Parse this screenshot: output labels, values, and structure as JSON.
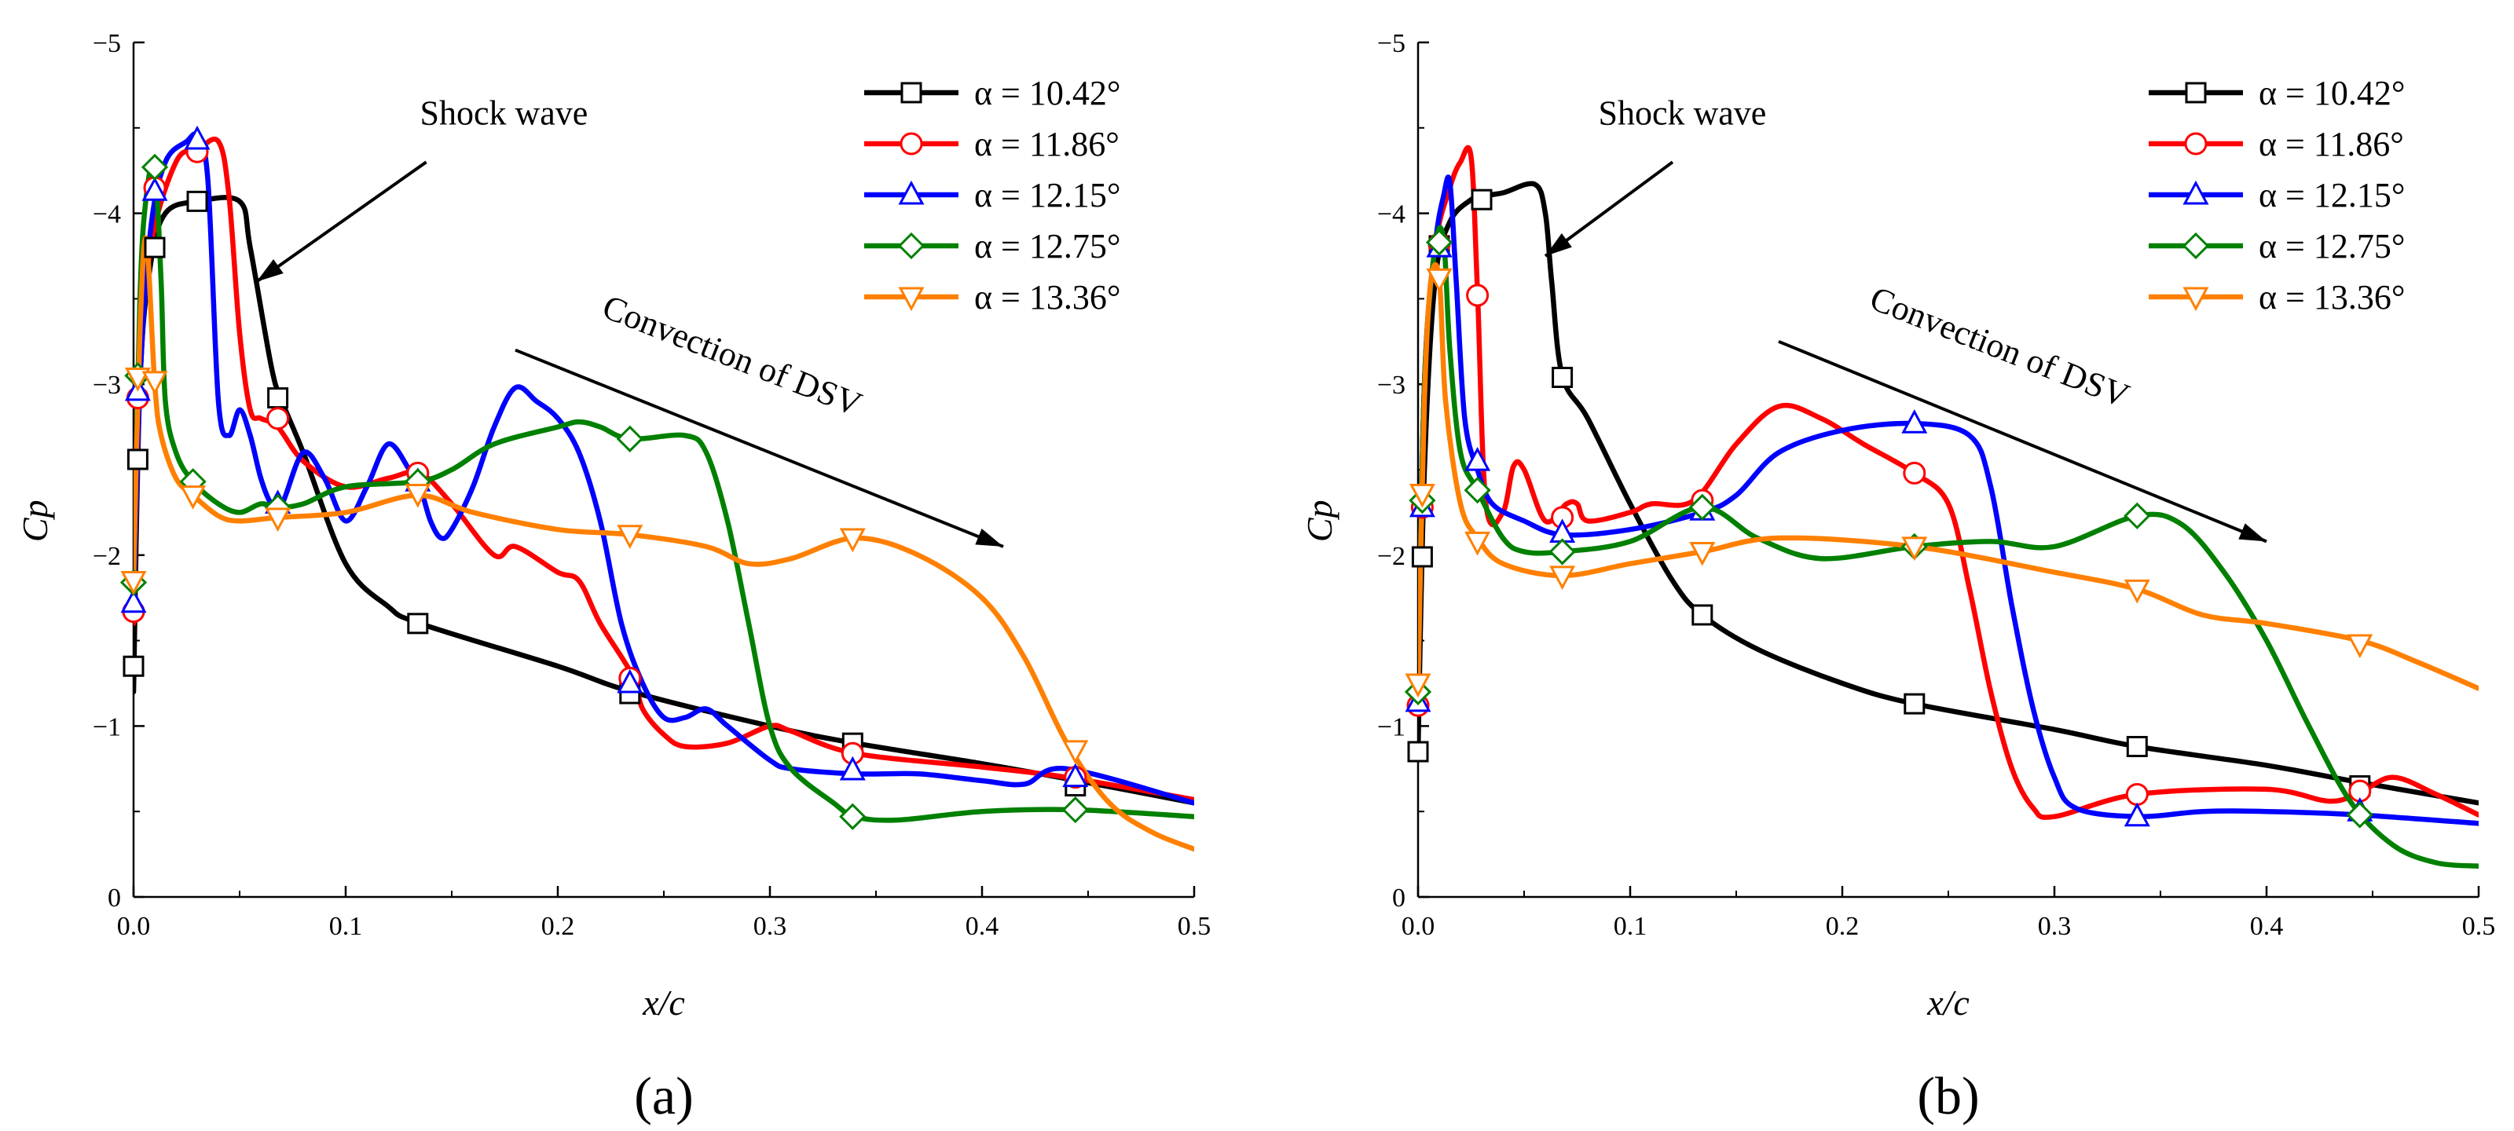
{
  "chart_data": [
    {
      "type": "line",
      "panel_label": "(a)",
      "xlabel": "x/c",
      "ylabel": "Cp",
      "xlim": [
        0,
        0.5
      ],
      "ylim": [
        0,
        -5
      ],
      "y_inverted": true,
      "grid": false,
      "legend_position": "top-right",
      "xticks": [
        "0.0",
        "0.1",
        "0.2",
        "0.3",
        "0.4",
        "0.5"
      ],
      "yticks": [
        "0",
        "−1",
        "−2",
        "−3",
        "−4",
        "−5"
      ],
      "annotations": [
        {
          "text": "Shock wave",
          "text_x": 0.135,
          "text_y": -4.52,
          "rotate": 0,
          "arrow_from": [
            0.138,
            -4.3
          ],
          "arrow_to": [
            0.058,
            -3.6
          ]
        },
        {
          "text": "Convection of DSV",
          "text_x": 0.22,
          "text_y": -3.4,
          "rotate": 21.5,
          "arrow_from": [
            0.18,
            -3.2
          ],
          "arrow_to": [
            0.41,
            -2.05
          ]
        }
      ],
      "series": [
        {
          "name": "α = 10.42°",
          "color": "#000000",
          "marker": "square",
          "x": [
            0,
            0.003,
            0.008,
            0.015,
            0.03,
            0.05,
            0.055,
            0.065,
            0.07,
            0.08,
            0.1,
            0.12,
            0.135,
            0.2,
            0.235,
            0.3,
            0.34,
            0.4,
            0.445,
            0.5
          ],
          "y": [
            -1.2,
            -3.0,
            -3.7,
            -4.0,
            -4.07,
            -4.07,
            -3.8,
            -3.1,
            -2.9,
            -2.6,
            -1.95,
            -1.7,
            -1.6,
            -1.35,
            -1.2,
            -1.0,
            -0.9,
            -0.78,
            -0.68,
            -0.55
          ],
          "marker_x": [
            0.0,
            0.002,
            0.01,
            0.03,
            0.068,
            0.134,
            0.234,
            0.339,
            0.444
          ],
          "marker_y": [
            -1.35,
            -2.56,
            -3.8,
            -4.07,
            -2.92,
            -1.6,
            -1.19,
            -0.9,
            -0.65
          ]
        },
        {
          "name": "α = 11.86°",
          "color": "#ff0000",
          "marker": "circle",
          "x": [
            0,
            0.003,
            0.008,
            0.02,
            0.03,
            0.04,
            0.045,
            0.05,
            0.055,
            0.06,
            0.068,
            0.08,
            0.1,
            0.12,
            0.135,
            0.15,
            0.17,
            0.18,
            0.2,
            0.21,
            0.22,
            0.235,
            0.24,
            0.25,
            0.26,
            0.28,
            0.3,
            0.31,
            0.34,
            0.4,
            0.44,
            0.5
          ],
          "y": [
            -1.6,
            -3.0,
            -3.8,
            -4.3,
            -4.37,
            -4.42,
            -4.1,
            -3.3,
            -2.85,
            -2.8,
            -2.75,
            -2.55,
            -2.4,
            -2.45,
            -2.48,
            -2.3,
            -2.0,
            -2.05,
            -1.9,
            -1.85,
            -1.6,
            -1.3,
            -1.1,
            -0.95,
            -0.88,
            -0.9,
            -1.0,
            -0.97,
            -0.84,
            -0.76,
            -0.7,
            -0.57
          ],
          "marker_x": [
            0.0,
            0.002,
            0.01,
            0.03,
            0.068,
            0.134,
            0.234,
            0.339,
            0.444
          ],
          "marker_y": [
            -1.67,
            -2.92,
            -4.15,
            -4.36,
            -2.8,
            -2.48,
            -1.28,
            -0.84,
            -0.7
          ]
        },
        {
          "name": "α = 12.15°",
          "color": "#0000ff",
          "marker": "triangle-up",
          "x": [
            0,
            0.003,
            0.008,
            0.015,
            0.025,
            0.03,
            0.035,
            0.04,
            0.045,
            0.05,
            0.055,
            0.06,
            0.065,
            0.07,
            0.08,
            0.09,
            0.1,
            0.11,
            0.12,
            0.13,
            0.135,
            0.14,
            0.145,
            0.15,
            0.16,
            0.17,
            0.18,
            0.19,
            0.2,
            0.21,
            0.22,
            0.23,
            0.24,
            0.25,
            0.26,
            0.27,
            0.28,
            0.3,
            0.31,
            0.34,
            0.37,
            0.4,
            0.42,
            0.44,
            0.5
          ],
          "y": [
            -1.7,
            -3.0,
            -3.9,
            -4.3,
            -4.42,
            -4.45,
            -4.2,
            -2.9,
            -2.7,
            -2.85,
            -2.7,
            -2.45,
            -2.3,
            -2.3,
            -2.6,
            -2.45,
            -2.2,
            -2.4,
            -2.65,
            -2.5,
            -2.4,
            -2.2,
            -2.1,
            -2.15,
            -2.4,
            -2.75,
            -2.98,
            -2.9,
            -2.8,
            -2.6,
            -2.2,
            -1.6,
            -1.25,
            -1.05,
            -1.05,
            -1.1,
            -1.0,
            -0.8,
            -0.75,
            -0.72,
            -0.72,
            -0.68,
            -0.66,
            -0.75,
            -0.55
          ],
          "marker_x": [
            0.0,
            0.002,
            0.01,
            0.03,
            0.068,
            0.134,
            0.234,
            0.339,
            0.444
          ],
          "marker_y": [
            -1.72,
            -2.96,
            -4.13,
            -4.43,
            -2.3,
            -2.43,
            -1.25,
            -0.74,
            -0.7
          ]
        },
        {
          "name": "α = 12.75°",
          "color": "#008000",
          "marker": "diamond",
          "x": [
            0,
            0.003,
            0.006,
            0.01,
            0.013,
            0.015,
            0.02,
            0.028,
            0.04,
            0.05,
            0.06,
            0.068,
            0.08,
            0.1,
            0.134,
            0.15,
            0.17,
            0.2,
            0.21,
            0.22,
            0.234,
            0.26,
            0.27,
            0.28,
            0.29,
            0.3,
            0.31,
            0.33,
            0.34,
            0.36,
            0.4,
            0.444,
            0.5
          ],
          "y": [
            -1.8,
            -3.5,
            -4.1,
            -4.27,
            -3.6,
            -2.9,
            -2.6,
            -2.43,
            -2.3,
            -2.25,
            -2.3,
            -2.28,
            -2.3,
            -2.4,
            -2.43,
            -2.5,
            -2.65,
            -2.75,
            -2.78,
            -2.75,
            -2.68,
            -2.7,
            -2.6,
            -2.2,
            -1.6,
            -1.0,
            -0.75,
            -0.55,
            -0.47,
            -0.45,
            -0.5,
            -0.51,
            -0.47
          ],
          "marker_x": [
            0.0,
            0.002,
            0.01,
            0.028,
            0.068,
            0.134,
            0.234,
            0.339,
            0.444
          ],
          "marker_y": [
            -1.84,
            -3.05,
            -4.27,
            -2.43,
            -2.28,
            -2.43,
            -2.68,
            -0.47,
            -0.51
          ]
        },
        {
          "name": "α = 13.36°",
          "color": "#ff8000",
          "marker": "triangle-down",
          "x": [
            0,
            0.003,
            0.006,
            0.01,
            0.013,
            0.02,
            0.028,
            0.04,
            0.05,
            0.068,
            0.1,
            0.134,
            0.16,
            0.2,
            0.234,
            0.27,
            0.29,
            0.31,
            0.34,
            0.37,
            0.4,
            0.42,
            0.44,
            0.46,
            0.48,
            0.5
          ],
          "y": [
            -1.9,
            -3.3,
            -3.85,
            -3.0,
            -2.7,
            -2.45,
            -2.35,
            -2.23,
            -2.2,
            -2.22,
            -2.25,
            -2.35,
            -2.25,
            -2.15,
            -2.12,
            -2.05,
            -1.95,
            -1.98,
            -2.1,
            -2.0,
            -1.75,
            -1.4,
            -0.9,
            -0.55,
            -0.38,
            -0.28
          ],
          "marker_x": [
            0.0,
            0.002,
            0.01,
            0.028,
            0.068,
            0.134,
            0.234,
            0.339,
            0.444
          ],
          "marker_y": [
            -1.85,
            -3.04,
            -3.02,
            -2.35,
            -2.22,
            -2.36,
            -2.12,
            -2.1,
            -0.86
          ]
        }
      ]
    },
    {
      "type": "line",
      "panel_label": "(b)",
      "xlabel": "x/c",
      "ylabel": "Cp",
      "xlim": [
        0,
        0.5
      ],
      "ylim": [
        0,
        -5
      ],
      "y_inverted": true,
      "grid": false,
      "legend_position": "top-right",
      "xticks": [
        "0.0",
        "0.1",
        "0.2",
        "0.3",
        "0.4",
        "0.5"
      ],
      "yticks": [
        "0",
        "−1",
        "−2",
        "−3",
        "−4",
        "−5"
      ],
      "annotations": [
        {
          "text": "Shock wave",
          "text_x": 0.085,
          "text_y": -4.52,
          "rotate": 0,
          "arrow_from": [
            0.12,
            -4.3
          ],
          "arrow_to": [
            0.06,
            -3.75
          ]
        },
        {
          "text": "Convection of DSV",
          "text_x": 0.212,
          "text_y": -3.45,
          "rotate": 21.5,
          "arrow_from": [
            0.17,
            -3.25
          ],
          "arrow_to": [
            0.4,
            -2.08
          ]
        }
      ],
      "series": [
        {
          "name": "α = 10.42°",
          "color": "#000000",
          "marker": "square",
          "x": [
            0,
            0.003,
            0.008,
            0.015,
            0.025,
            0.03,
            0.04,
            0.055,
            0.06,
            0.063,
            0.068,
            0.08,
            0.1,
            0.12,
            0.134,
            0.16,
            0.2,
            0.234,
            0.3,
            0.339,
            0.4,
            0.444,
            0.5
          ],
          "y": [
            -0.85,
            -2.5,
            -3.6,
            -3.95,
            -4.08,
            -4.1,
            -4.12,
            -4.17,
            -4.0,
            -3.6,
            -3.05,
            -2.8,
            -2.3,
            -1.85,
            -1.65,
            -1.45,
            -1.25,
            -1.13,
            -0.98,
            -0.88,
            -0.77,
            -0.67,
            -0.55
          ],
          "marker_x": [
            0.0,
            0.002,
            0.01,
            0.03,
            0.068,
            0.134,
            0.234,
            0.339,
            0.444
          ],
          "marker_y": [
            -0.85,
            -1.99,
            -3.81,
            -4.08,
            -3.04,
            -1.65,
            -1.13,
            -0.88,
            -0.65
          ]
        },
        {
          "name": "α = 11.86°",
          "color": "#ff0000",
          "marker": "circle",
          "x": [
            0,
            0.003,
            0.008,
            0.015,
            0.02,
            0.025,
            0.028,
            0.032,
            0.04,
            0.045,
            0.05,
            0.06,
            0.07,
            0.075,
            0.08,
            0.1,
            0.11,
            0.13,
            0.15,
            0.17,
            0.19,
            0.21,
            0.234,
            0.25,
            0.26,
            0.27,
            0.28,
            0.29,
            0.3,
            0.339,
            0.4,
            0.43,
            0.445,
            0.46,
            0.48,
            0.5
          ],
          "y": [
            -1.15,
            -3.0,
            -3.8,
            -4.15,
            -4.3,
            -4.33,
            -3.55,
            -2.3,
            -2.25,
            -2.52,
            -2.5,
            -2.2,
            -2.3,
            -2.3,
            -2.2,
            -2.25,
            -2.3,
            -2.32,
            -2.65,
            -2.87,
            -2.8,
            -2.65,
            -2.48,
            -2.3,
            -1.8,
            -1.2,
            -0.75,
            -0.52,
            -0.47,
            -0.6,
            -0.63,
            -0.56,
            -0.62,
            -0.7,
            -0.6,
            -0.48
          ],
          "marker_x": [
            0.0,
            0.002,
            0.01,
            0.028,
            0.068,
            0.134,
            0.234,
            0.339,
            0.444
          ],
          "marker_y": [
            -1.12,
            -2.28,
            -3.82,
            -3.52,
            -2.22,
            -2.32,
            -2.48,
            -0.6,
            -0.62
          ]
        },
        {
          "name": "α = 12.15°",
          "color": "#0000ff",
          "marker": "triangle-up",
          "x": [
            0,
            0.003,
            0.008,
            0.012,
            0.015,
            0.018,
            0.022,
            0.028,
            0.035,
            0.05,
            0.068,
            0.1,
            0.134,
            0.15,
            0.17,
            0.2,
            0.234,
            0.26,
            0.27,
            0.28,
            0.29,
            0.3,
            0.31,
            0.339,
            0.37,
            0.4,
            0.444,
            0.5
          ],
          "y": [
            -1.15,
            -3.0,
            -3.8,
            -4.1,
            -4.18,
            -3.6,
            -2.8,
            -2.5,
            -2.3,
            -2.2,
            -2.12,
            -2.15,
            -2.25,
            -2.35,
            -2.6,
            -2.73,
            -2.77,
            -2.7,
            -2.4,
            -1.7,
            -1.1,
            -0.7,
            -0.52,
            -0.47,
            -0.5,
            -0.5,
            -0.48,
            -0.43
          ],
          "marker_x": [
            0.0,
            0.002,
            0.01,
            0.028,
            0.068,
            0.134,
            0.234,
            0.339,
            0.444
          ],
          "marker_y": [
            -1.14,
            -2.28,
            -3.8,
            -2.55,
            -2.13,
            -2.26,
            -2.77,
            -0.47,
            -0.5
          ]
        },
        {
          "name": "α = 12.75°",
          "color": "#008000",
          "marker": "diamond",
          "x": [
            0,
            0.003,
            0.008,
            0.012,
            0.015,
            0.02,
            0.028,
            0.04,
            0.05,
            0.068,
            0.1,
            0.134,
            0.16,
            0.19,
            0.234,
            0.27,
            0.3,
            0.339,
            0.36,
            0.38,
            0.4,
            0.42,
            0.44,
            0.46,
            0.48,
            0.5
          ],
          "y": [
            -1.2,
            -3.0,
            -3.8,
            -3.85,
            -3.2,
            -2.6,
            -2.38,
            -2.1,
            -2.02,
            -2.02,
            -2.08,
            -2.28,
            -2.1,
            -1.98,
            -2.05,
            -2.08,
            -2.05,
            -2.23,
            -2.18,
            -1.9,
            -1.5,
            -1.0,
            -0.55,
            -0.3,
            -0.2,
            -0.18
          ],
          "marker_x": [
            0.0,
            0.002,
            0.01,
            0.028,
            0.068,
            0.134,
            0.234,
            0.339,
            0.444
          ],
          "marker_y": [
            -1.2,
            -2.32,
            -3.83,
            -2.38,
            -2.02,
            -2.28,
            -2.05,
            -2.23,
            -0.48
          ]
        },
        {
          "name": "α = 13.36°",
          "color": "#ff8000",
          "marker": "triangle-down",
          "x": [
            0,
            0.003,
            0.006,
            0.01,
            0.013,
            0.02,
            0.028,
            0.04,
            0.068,
            0.1,
            0.134,
            0.17,
            0.234,
            0.3,
            0.339,
            0.37,
            0.4,
            0.444,
            0.47,
            0.5
          ],
          "y": [
            -1.25,
            -2.9,
            -3.6,
            -3.62,
            -2.9,
            -2.3,
            -2.1,
            -1.95,
            -1.88,
            -1.95,
            -2.02,
            -2.1,
            -2.05,
            -1.9,
            -1.8,
            -1.65,
            -1.6,
            -1.5,
            -1.38,
            -1.22
          ],
          "marker_x": [
            0.0,
            0.002,
            0.01,
            0.028,
            0.068,
            0.134,
            0.234,
            0.339,
            0.444
          ],
          "marker_y": [
            -1.25,
            -2.36,
            -3.62,
            -2.08,
            -1.88,
            -2.02,
            -2.05,
            -1.8,
            -1.48
          ]
        }
      ]
    }
  ]
}
